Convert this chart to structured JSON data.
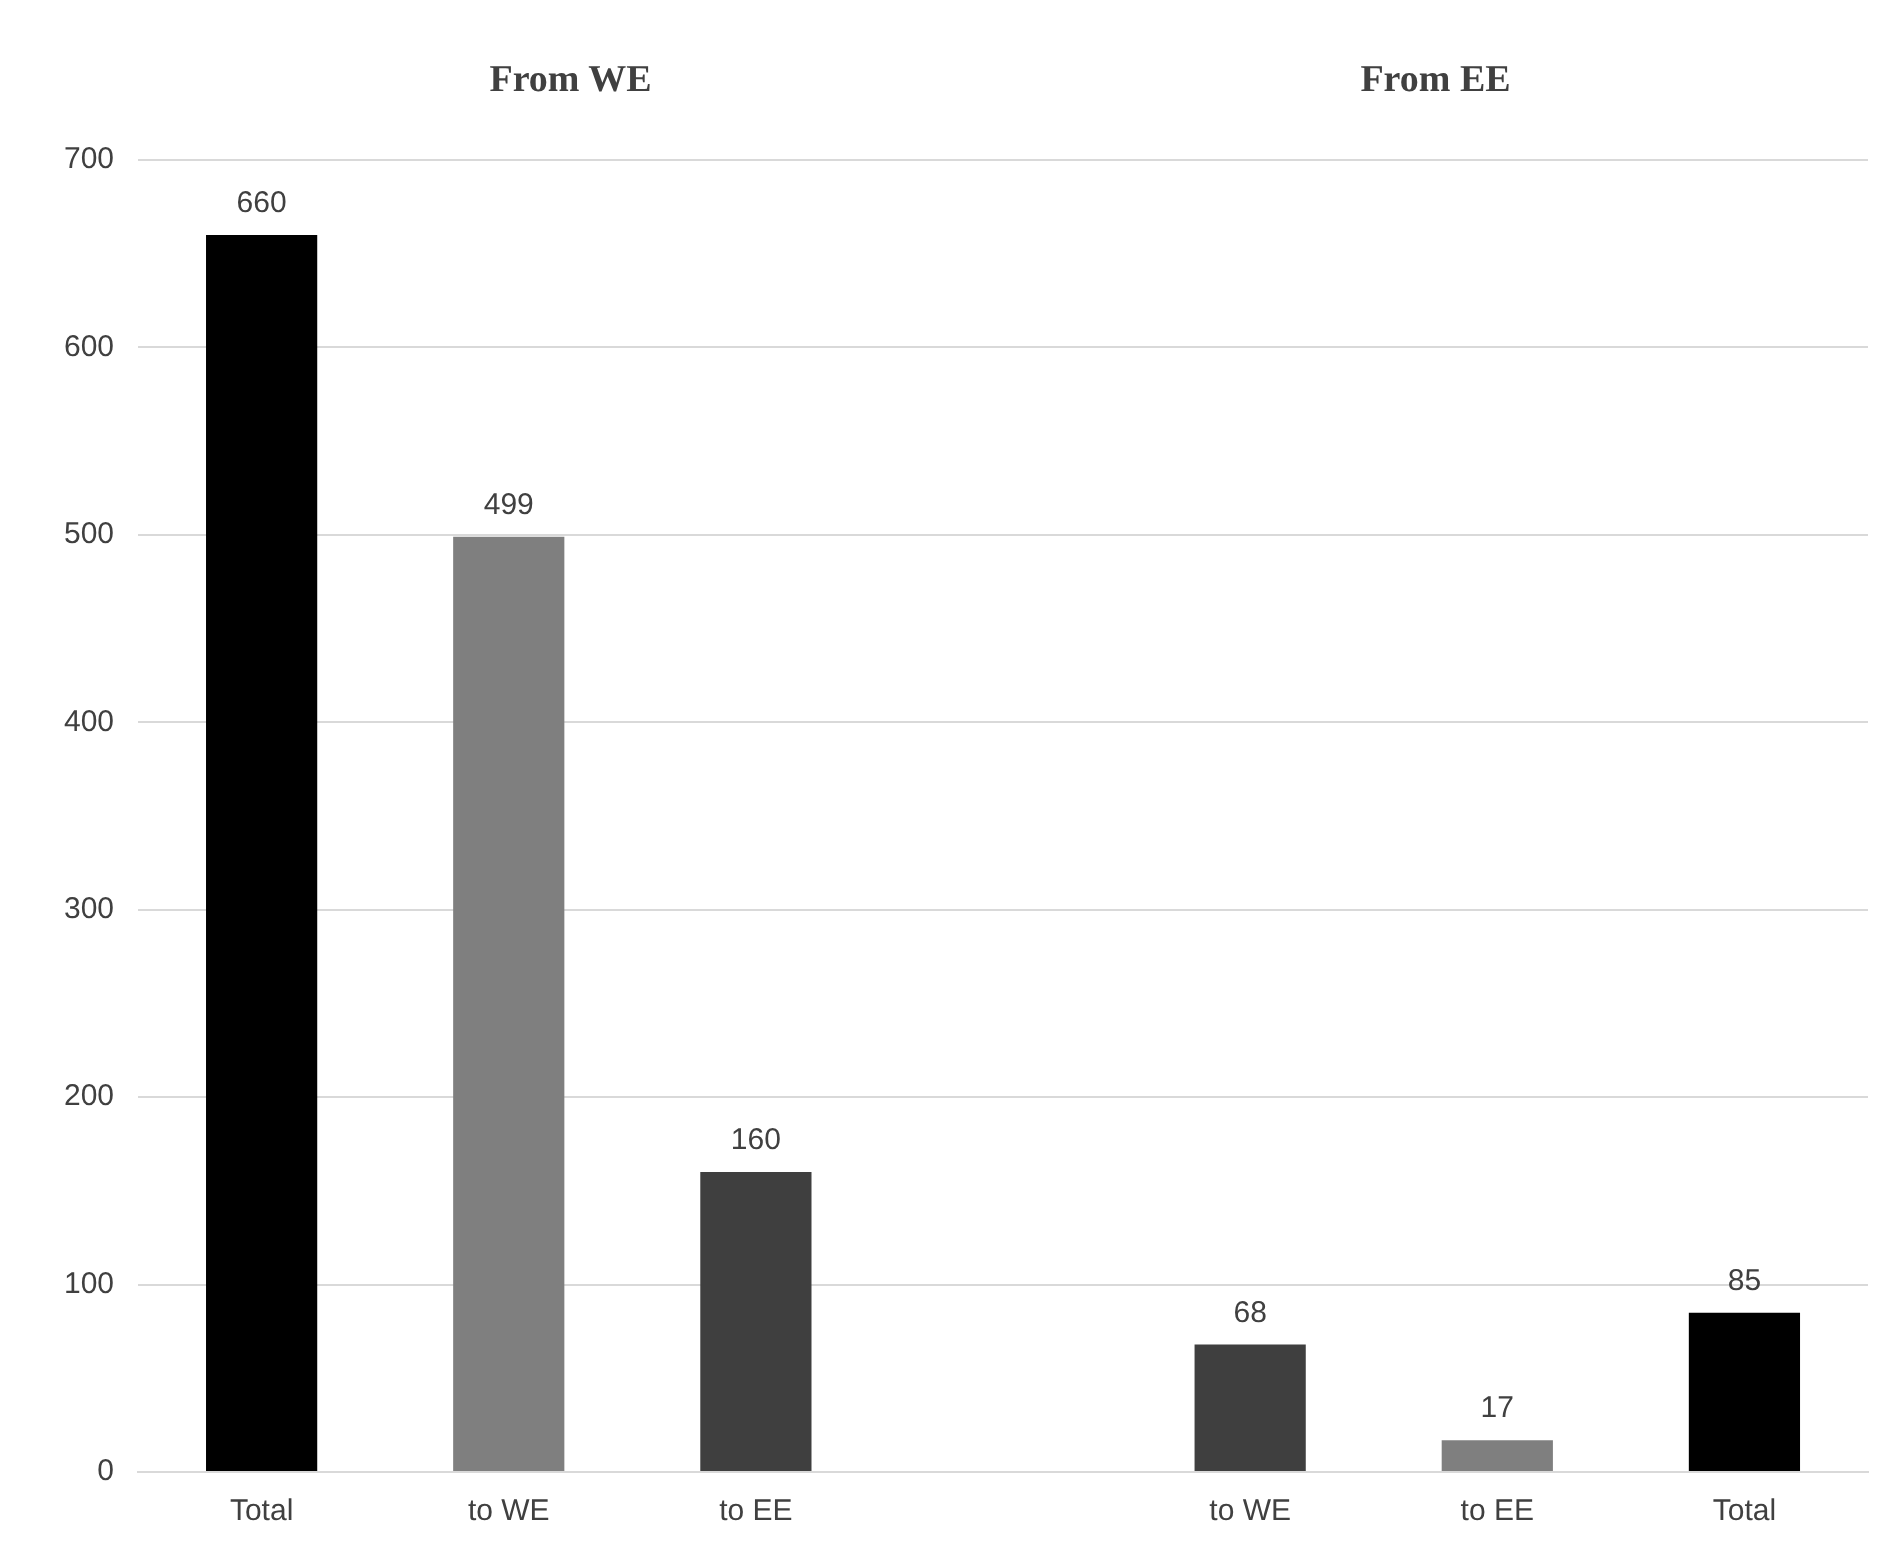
{
  "chart_data": {
    "type": "bar",
    "categories": [
      "Total",
      "to WE",
      "to EE",
      null,
      "to WE",
      "to EE",
      "Total"
    ],
    "values": [
      660,
      499,
      160,
      null,
      68,
      17,
      85
    ],
    "colors": [
      "#000000",
      "#7f7f7f",
      "#3f3f3f",
      "#000000",
      "#3f3f3f",
      "#7f7f7f",
      "#000000"
    ],
    "ylim": [
      0,
      700
    ],
    "yticks": [
      0,
      100,
      200,
      300,
      400,
      500,
      600,
      700
    ],
    "grid": "y",
    "data_labels": true,
    "legend": false,
    "annotations": [
      "From WE",
      "From EE"
    ]
  }
}
